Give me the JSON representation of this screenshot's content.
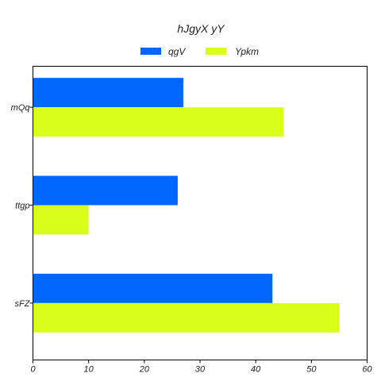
{
  "chart_data": {
    "type": "bar",
    "orientation": "horizontal",
    "title": "hJgyX yY",
    "categories": [
      "mQq",
      "ttgp",
      "sFZ"
    ],
    "series": [
      {
        "name": "qgV",
        "values": [
          27,
          26,
          43
        ],
        "color": "#0066ff"
      },
      {
        "name": "Ypkm",
        "values": [
          45,
          10,
          55
        ],
        "color": "#d9ff1a"
      }
    ],
    "xticks": [
      0,
      10,
      20,
      30,
      40,
      50,
      60
    ],
    "xlim": [
      0,
      60
    ],
    "xlabel": "",
    "ylabel": "",
    "grid": false,
    "legend_position": "top-center"
  }
}
